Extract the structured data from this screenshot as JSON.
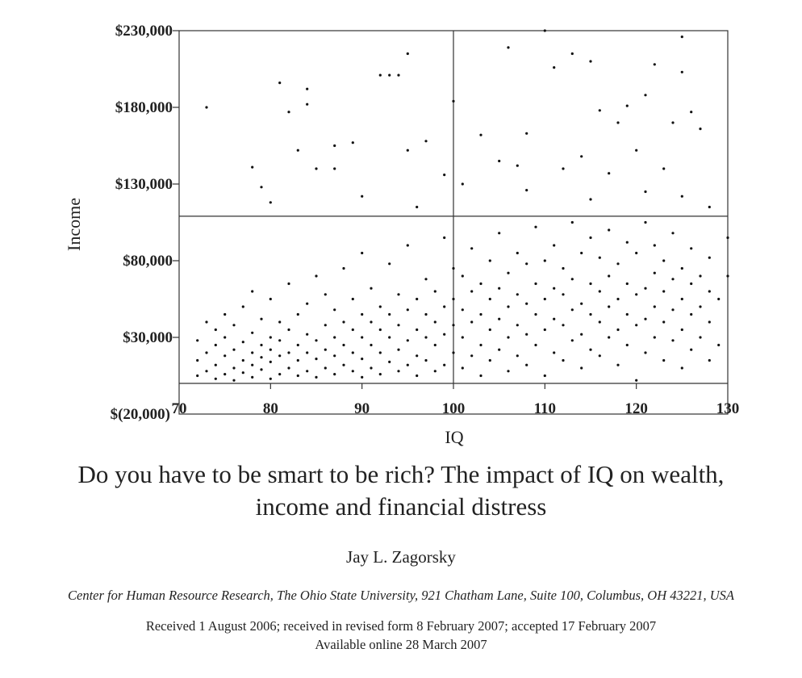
{
  "chart_data": {
    "type": "scatter",
    "xlabel": "IQ",
    "ylabel": "Income",
    "xlim": [
      70,
      130
    ],
    "ylim": [
      -20000,
      230000
    ],
    "x_ticks": [
      "70",
      "80",
      "90",
      "100",
      "110",
      "120",
      "130"
    ],
    "y_ticks": [
      "$(20,000)",
      "$30,000",
      "$80,000",
      "$130,000",
      "$180,000",
      "$230,000"
    ],
    "reference_lines": {
      "vertical_iq": 100,
      "horizontal_income": 109000,
      "zero_line": 0
    },
    "grid": false,
    "points": [
      [
        72,
        5000
      ],
      [
        72,
        15000
      ],
      [
        72,
        28000
      ],
      [
        73,
        8000
      ],
      [
        73,
        20000
      ],
      [
        73,
        40000
      ],
      [
        74,
        3000
      ],
      [
        74,
        12000
      ],
      [
        74,
        25000
      ],
      [
        74,
        35000
      ],
      [
        75,
        6000
      ],
      [
        75,
        18000
      ],
      [
        75,
        30000
      ],
      [
        75,
        45000
      ],
      [
        76,
        2000
      ],
      [
        76,
        10000
      ],
      [
        76,
        22000
      ],
      [
        76,
        38000
      ],
      [
        77,
        7000
      ],
      [
        77,
        15000
      ],
      [
        77,
        27000
      ],
      [
        77,
        50000
      ],
      [
        78,
        4000
      ],
      [
        78,
        12000
      ],
      [
        78,
        20000
      ],
      [
        78,
        33000
      ],
      [
        78,
        60000
      ],
      [
        79,
        9000
      ],
      [
        79,
        17000
      ],
      [
        79,
        25000
      ],
      [
        79,
        42000
      ],
      [
        80,
        3000
      ],
      [
        80,
        14000
      ],
      [
        80,
        22000
      ],
      [
        80,
        30000
      ],
      [
        80,
        55000
      ],
      [
        81,
        6000
      ],
      [
        81,
        18000
      ],
      [
        81,
        28000
      ],
      [
        81,
        40000
      ],
      [
        82,
        10000
      ],
      [
        82,
        20000
      ],
      [
        82,
        35000
      ],
      [
        82,
        65000
      ],
      [
        83,
        5000
      ],
      [
        83,
        15000
      ],
      [
        83,
        25000
      ],
      [
        83,
        45000
      ],
      [
        84,
        8000
      ],
      [
        84,
        20000
      ],
      [
        84,
        32000
      ],
      [
        84,
        52000
      ],
      [
        85,
        4000
      ],
      [
        85,
        16000
      ],
      [
        85,
        28000
      ],
      [
        85,
        70000
      ],
      [
        86,
        10000
      ],
      [
        86,
        22000
      ],
      [
        86,
        38000
      ],
      [
        86,
        58000
      ],
      [
        87,
        6000
      ],
      [
        87,
        18000
      ],
      [
        87,
        30000
      ],
      [
        87,
        48000
      ],
      [
        88,
        12000
      ],
      [
        88,
        25000
      ],
      [
        88,
        40000
      ],
      [
        88,
        75000
      ],
      [
        89,
        8000
      ],
      [
        89,
        20000
      ],
      [
        89,
        35000
      ],
      [
        89,
        55000
      ],
      [
        90,
        4000
      ],
      [
        90,
        16000
      ],
      [
        90,
        30000
      ],
      [
        90,
        45000
      ],
      [
        90,
        85000
      ],
      [
        91,
        10000
      ],
      [
        91,
        25000
      ],
      [
        91,
        40000
      ],
      [
        91,
        62000
      ],
      [
        92,
        6000
      ],
      [
        92,
        20000
      ],
      [
        92,
        35000
      ],
      [
        92,
        50000
      ],
      [
        93,
        14000
      ],
      [
        93,
        30000
      ],
      [
        93,
        45000
      ],
      [
        93,
        78000
      ],
      [
        94,
        8000
      ],
      [
        94,
        22000
      ],
      [
        94,
        38000
      ],
      [
        94,
        58000
      ],
      [
        95,
        12000
      ],
      [
        95,
        28000
      ],
      [
        95,
        48000
      ],
      [
        95,
        90000
      ],
      [
        96,
        5000
      ],
      [
        96,
        18000
      ],
      [
        96,
        35000
      ],
      [
        96,
        55000
      ],
      [
        97,
        15000
      ],
      [
        97,
        30000
      ],
      [
        97,
        45000
      ],
      [
        97,
        68000
      ],
      [
        98,
        8000
      ],
      [
        98,
        25000
      ],
      [
        98,
        40000
      ],
      [
        98,
        60000
      ],
      [
        99,
        12000
      ],
      [
        99,
        32000
      ],
      [
        99,
        50000
      ],
      [
        99,
        95000
      ],
      [
        100,
        20000
      ],
      [
        100,
        38000
      ],
      [
        100,
        55000
      ],
      [
        100,
        75000
      ],
      [
        101,
        10000
      ],
      [
        101,
        30000
      ],
      [
        101,
        48000
      ],
      [
        101,
        70000
      ],
      [
        102,
        18000
      ],
      [
        102,
        40000
      ],
      [
        102,
        60000
      ],
      [
        102,
        88000
      ],
      [
        103,
        5000
      ],
      [
        103,
        25000
      ],
      [
        103,
        45000
      ],
      [
        103,
        65000
      ],
      [
        104,
        15000
      ],
      [
        104,
        35000
      ],
      [
        104,
        55000
      ],
      [
        104,
        80000
      ],
      [
        105,
        22000
      ],
      [
        105,
        42000
      ],
      [
        105,
        62000
      ],
      [
        105,
        98000
      ],
      [
        106,
        8000
      ],
      [
        106,
        30000
      ],
      [
        106,
        50000
      ],
      [
        106,
        72000
      ],
      [
        107,
        18000
      ],
      [
        107,
        38000
      ],
      [
        107,
        58000
      ],
      [
        107,
        85000
      ],
      [
        108,
        12000
      ],
      [
        108,
        32000
      ],
      [
        108,
        52000
      ],
      [
        108,
        78000
      ],
      [
        109,
        25000
      ],
      [
        109,
        45000
      ],
      [
        109,
        65000
      ],
      [
        109,
        102000
      ],
      [
        110,
        5000
      ],
      [
        110,
        35000
      ],
      [
        110,
        55000
      ],
      [
        110,
        80000
      ],
      [
        111,
        20000
      ],
      [
        111,
        42000
      ],
      [
        111,
        62000
      ],
      [
        111,
        90000
      ],
      [
        112,
        15000
      ],
      [
        112,
        38000
      ],
      [
        112,
        58000
      ],
      [
        112,
        75000
      ],
      [
        113,
        28000
      ],
      [
        113,
        48000
      ],
      [
        113,
        68000
      ],
      [
        113,
        105000
      ],
      [
        114,
        10000
      ],
      [
        114,
        32000
      ],
      [
        114,
        52000
      ],
      [
        114,
        85000
      ],
      [
        115,
        22000
      ],
      [
        115,
        45000
      ],
      [
        115,
        65000
      ],
      [
        115,
        95000
      ],
      [
        116,
        18000
      ],
      [
        116,
        40000
      ],
      [
        116,
        60000
      ],
      [
        116,
        82000
      ],
      [
        117,
        30000
      ],
      [
        117,
        50000
      ],
      [
        117,
        70000
      ],
      [
        117,
        100000
      ],
      [
        118,
        12000
      ],
      [
        118,
        35000
      ],
      [
        118,
        55000
      ],
      [
        118,
        78000
      ],
      [
        119,
        25000
      ],
      [
        119,
        45000
      ],
      [
        119,
        65000
      ],
      [
        119,
        92000
      ],
      [
        120,
        2000
      ],
      [
        120,
        38000
      ],
      [
        120,
        58000
      ],
      [
        120,
        85000
      ],
      [
        121,
        20000
      ],
      [
        121,
        42000
      ],
      [
        121,
        62000
      ],
      [
        121,
        105000
      ],
      [
        122,
        30000
      ],
      [
        122,
        50000
      ],
      [
        122,
        72000
      ],
      [
        122,
        90000
      ],
      [
        123,
        15000
      ],
      [
        123,
        40000
      ],
      [
        123,
        60000
      ],
      [
        123,
        80000
      ],
      [
        124,
        28000
      ],
      [
        124,
        48000
      ],
      [
        124,
        68000
      ],
      [
        124,
        98000
      ],
      [
        125,
        10000
      ],
      [
        125,
        35000
      ],
      [
        125,
        55000
      ],
      [
        125,
        75000
      ],
      [
        126,
        22000
      ],
      [
        126,
        45000
      ],
      [
        126,
        65000
      ],
      [
        126,
        88000
      ],
      [
        127,
        30000
      ],
      [
        127,
        50000
      ],
      [
        127,
        70000
      ],
      [
        128,
        15000
      ],
      [
        128,
        40000
      ],
      [
        128,
        60000
      ],
      [
        128,
        82000
      ],
      [
        129,
        25000
      ],
      [
        129,
        55000
      ],
      [
        130,
        70000
      ],
      [
        130,
        95000
      ],
      [
        73,
        180000
      ],
      [
        81,
        196000
      ],
      [
        84,
        192000
      ],
      [
        84,
        182000
      ],
      [
        92,
        201000
      ],
      [
        93,
        201000
      ],
      [
        94,
        201000
      ],
      [
        95,
        215000
      ],
      [
        100,
        184000
      ],
      [
        106,
        219000
      ],
      [
        110,
        230000
      ],
      [
        111,
        206000
      ],
      [
        113,
        215000
      ],
      [
        115,
        210000
      ],
      [
        119,
        181000
      ],
      [
        121,
        188000
      ],
      [
        122,
        208000
      ],
      [
        125,
        226000
      ],
      [
        125,
        203000
      ],
      [
        126,
        177000
      ],
      [
        82,
        177000
      ],
      [
        97,
        158000
      ],
      [
        89,
        157000
      ],
      [
        87,
        155000
      ],
      [
        83,
        152000
      ],
      [
        78,
        141000
      ],
      [
        85,
        140000
      ],
      [
        87,
        140000
      ],
      [
        95,
        152000
      ],
      [
        103,
        162000
      ],
      [
        108,
        163000
      ],
      [
        116,
        178000
      ],
      [
        118,
        170000
      ],
      [
        124,
        170000
      ],
      [
        127,
        166000
      ],
      [
        120,
        152000
      ],
      [
        114,
        148000
      ],
      [
        105,
        145000
      ],
      [
        107,
        142000
      ],
      [
        112,
        140000
      ],
      [
        117,
        137000
      ],
      [
        123,
        140000
      ],
      [
        90,
        122000
      ],
      [
        80,
        118000
      ],
      [
        99,
        136000
      ],
      [
        101,
        130000
      ],
      [
        108,
        126000
      ],
      [
        115,
        120000
      ],
      [
        121,
        125000
      ],
      [
        125,
        122000
      ],
      [
        128,
        115000
      ],
      [
        96,
        115000
      ],
      [
        79,
        128000
      ]
    ]
  },
  "paper": {
    "title_line1": "Do you have to be smart to be rich? The impact of IQ on wealth,",
    "title_line2": "income and financial distress",
    "author": "Jay L. Zagorsky",
    "affiliation": "Center for Human Resource Research, The Ohio State University, 921 Chatham Lane, Suite 100, Columbus, OH 43221, USA",
    "received": "Received 1 August 2006; received in revised form 8 February 2007; accepted 17 February 2007",
    "available": "Available online 28 March 2007"
  }
}
